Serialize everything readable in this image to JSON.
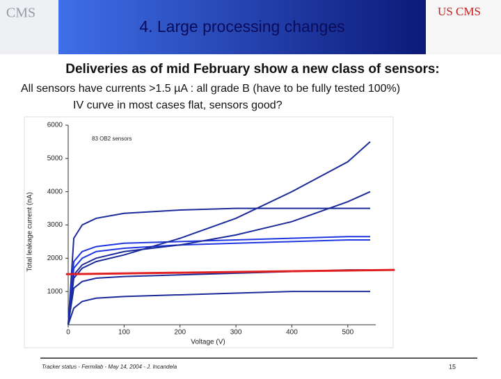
{
  "header": {
    "title": "4. Large processing changes",
    "logo_left": "CMS",
    "logo_right": "US CMS"
  },
  "subtitle": "Deliveries as of mid February show a new class of sensors:",
  "bullets": [
    "All sensors have currents >1.5 µA : all grade B (have to be fully tested 100%)",
    "IV curve in most cases flat, sensors good?"
  ],
  "chart_data": {
    "type": "line",
    "annotation": "83 OB2 sensors",
    "x_label": "Voltage (V)",
    "y_label": "Total leakage current (nA)",
    "x": [
      0,
      10,
      25,
      50,
      100,
      200,
      300,
      400,
      500,
      540
    ],
    "series": [
      {
        "color": "#1a2a9a",
        "values": [
          0,
          2600,
          3000,
          3200,
          3350,
          3450,
          3500,
          3500,
          3500,
          3500
        ]
      },
      {
        "color": "#1f35e0",
        "values": [
          0,
          1700,
          2000,
          2200,
          2300,
          2400,
          2450,
          2500,
          2550,
          2550
        ]
      },
      {
        "color": "#1f35e0",
        "values": [
          0,
          1900,
          2200,
          2350,
          2450,
          2500,
          2550,
          2600,
          2650,
          2650
        ]
      },
      {
        "color": "#1a2a9a",
        "values": [
          0,
          1400,
          1700,
          1900,
          2100,
          2600,
          3200,
          4000,
          4900,
          5500
        ]
      },
      {
        "color": "#1a2a9a",
        "values": [
          0,
          1500,
          1800,
          2000,
          2200,
          2400,
          2700,
          3100,
          3700,
          4000
        ]
      },
      {
        "color": "#1a2a9a",
        "values": [
          0,
          1100,
          1300,
          1400,
          1450,
          1500,
          1550,
          1600,
          1650,
          1650
        ]
      },
      {
        "color": "#1a2a9a",
        "values": [
          0,
          500,
          700,
          800,
          850,
          900,
          950,
          1000,
          1000,
          1000
        ]
      }
    ],
    "reference": {
      "color": "#e02020",
      "x": [
        -4,
        584
      ],
      "values": [
        1520,
        1650
      ]
    },
    "xlim": [
      0,
      550
    ],
    "ylim": [
      0,
      6000
    ],
    "xticks": [
      0,
      100,
      200,
      300,
      400,
      500
    ],
    "yticks": [
      1000,
      2000,
      3000,
      4000,
      5000,
      6000
    ]
  },
  "footer": {
    "text": "Tracker status - Fermilab - May 14, 2004 - J. Incandela",
    "page": "15"
  }
}
